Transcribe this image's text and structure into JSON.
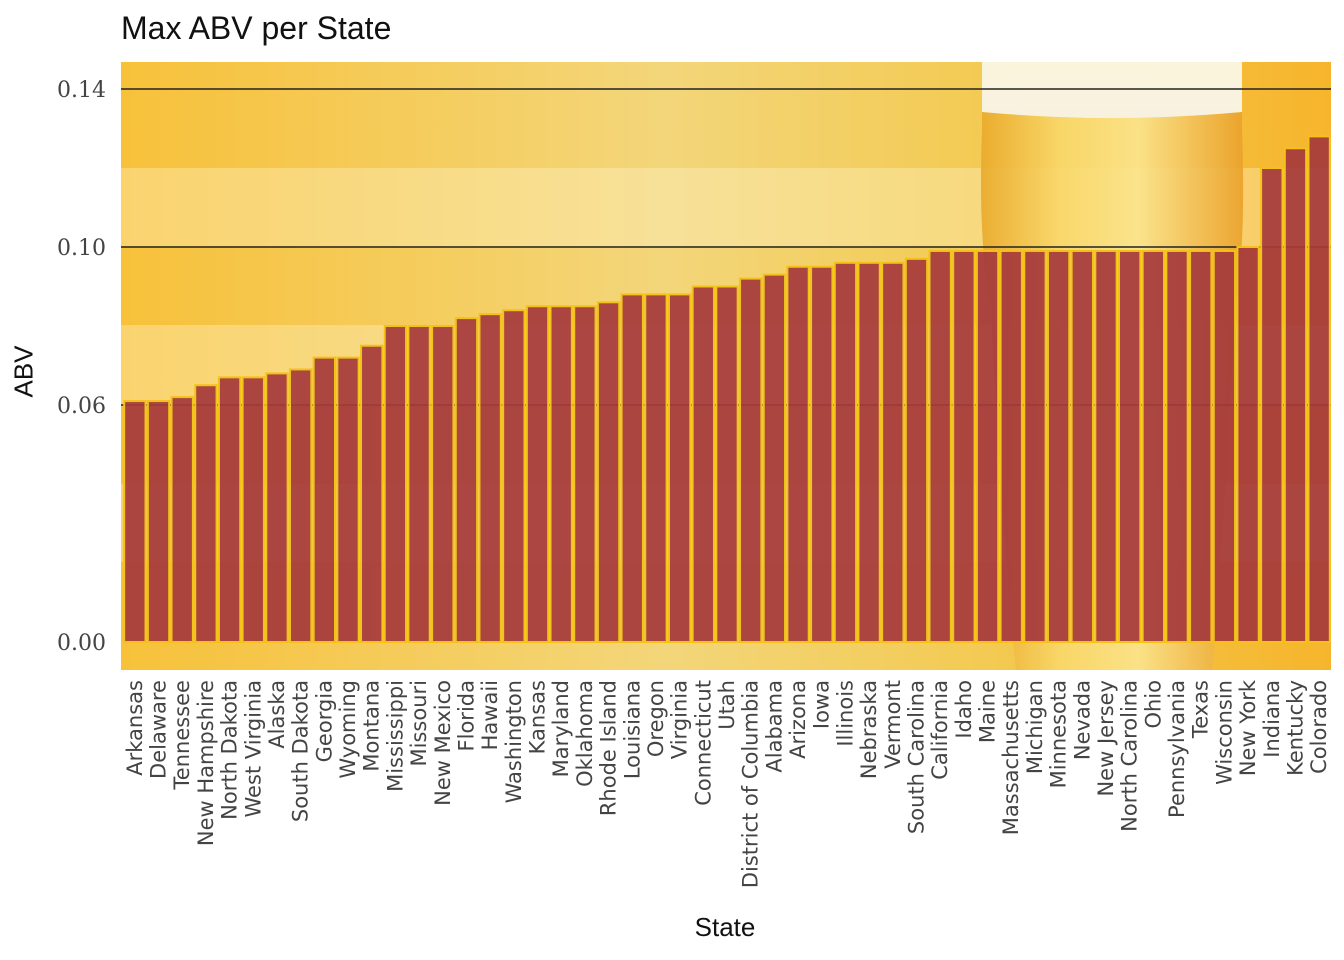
{
  "chart_data": {
    "type": "bar",
    "title": "Max ABV per State",
    "xlabel": "State",
    "ylabel": "ABV",
    "ylim": [
      0,
      0.147
    ],
    "yticks": [
      "0.00",
      "0.06",
      "0.10",
      "0.14"
    ],
    "grid": true,
    "legend": "none",
    "colors": {
      "bar_fill": "#a53a3c",
      "bar_outline": "#f2c21a",
      "bg_light": "#f7e6a6",
      "bg_gold": "#f6c64a",
      "bg_edge": "#f7b22e"
    },
    "categories": [
      "Arkansas",
      "Delaware",
      "Tennessee",
      "New Hampshire",
      "North Dakota",
      "West Virginia",
      "Alaska",
      "South Dakota",
      "Georgia",
      "Wyoming",
      "Montana",
      "Mississippi",
      "Missouri",
      "New Mexico",
      "Florida",
      "Hawaii",
      "Washington",
      "Kansas",
      "Maryland",
      "Oklahoma",
      "Rhode Island",
      "Louisiana",
      "Oregon",
      "Virginia",
      "Connecticut",
      "Utah",
      "District of Columbia",
      "Alabama",
      "Arizona",
      "Iowa",
      "Illinois",
      "Nebraska",
      "Vermont",
      "South Carolina",
      "California",
      "Idaho",
      "Maine",
      "Massachusetts",
      "Michigan",
      "Minnesota",
      "Nevada",
      "New Jersey",
      "North Carolina",
      "Ohio",
      "Pennsylvania",
      "Texas",
      "Wisconsin",
      "New York",
      "Indiana",
      "Kentucky",
      "Colorado"
    ],
    "values": [
      0.061,
      0.061,
      0.062,
      0.065,
      0.067,
      0.067,
      0.068,
      0.069,
      0.072,
      0.072,
      0.075,
      0.08,
      0.08,
      0.08,
      0.082,
      0.083,
      0.084,
      0.085,
      0.085,
      0.085,
      0.086,
      0.088,
      0.088,
      0.088,
      0.09,
      0.09,
      0.092,
      0.093,
      0.095,
      0.095,
      0.096,
      0.096,
      0.096,
      0.097,
      0.099,
      0.099,
      0.099,
      0.099,
      0.099,
      0.099,
      0.099,
      0.099,
      0.099,
      0.099,
      0.099,
      0.099,
      0.099,
      0.1,
      0.12,
      0.125,
      0.128
    ]
  }
}
